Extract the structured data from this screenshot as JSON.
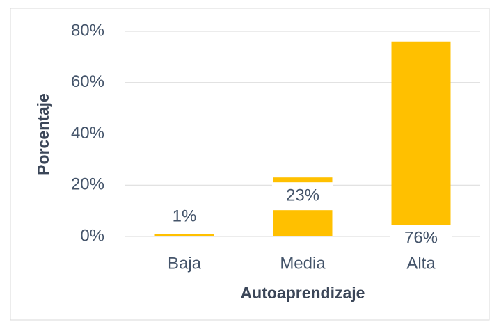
{
  "chart_data": {
    "type": "bar",
    "categories": [
      "Baja",
      "Media",
      "Alta"
    ],
    "values": [
      1,
      23,
      76
    ],
    "value_labels": [
      "1%",
      "23%",
      "76%"
    ],
    "color": "#ffc000",
    "ylim": [
      0,
      80
    ],
    "yticks": [
      {
        "value": 0,
        "label": "0%"
      },
      {
        "value": 20,
        "label": "20%"
      },
      {
        "value": 40,
        "label": "40%"
      },
      {
        "value": 60,
        "label": "60%"
      },
      {
        "value": 80,
        "label": "80%"
      }
    ],
    "grid": true,
    "x_label": "Autoaprendizaje",
    "y_label": "Porcentaje"
  }
}
